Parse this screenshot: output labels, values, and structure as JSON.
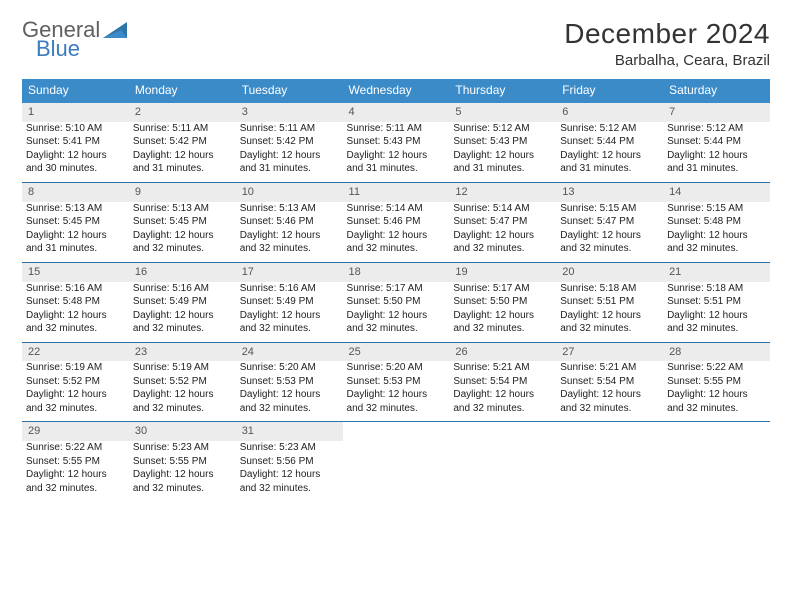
{
  "logo": {
    "line1": "General",
    "line2": "Blue"
  },
  "title": "December 2024",
  "location": "Barbalha, Ceara, Brazil",
  "colors": {
    "header_bg": "#3b8bc9",
    "header_text": "#ffffff",
    "row_rule": "#2f74a8",
    "daynum_bg": "#ececec",
    "logo_gray": "#5f5f5f",
    "logo_blue": "#3b7bbf"
  },
  "typography": {
    "title_fontsize": 28,
    "location_fontsize": 15,
    "dayheader_fontsize": 12,
    "cell_fontsize": 10
  },
  "day_headers": [
    "Sunday",
    "Monday",
    "Tuesday",
    "Wednesday",
    "Thursday",
    "Friday",
    "Saturday"
  ],
  "weeks": [
    {
      "nums": [
        "1",
        "2",
        "3",
        "4",
        "5",
        "6",
        "7"
      ],
      "cells": [
        {
          "sunrise": "Sunrise: 5:10 AM",
          "sunset": "Sunset: 5:41 PM",
          "d1": "Daylight: 12 hours",
          "d2": "and 30 minutes."
        },
        {
          "sunrise": "Sunrise: 5:11 AM",
          "sunset": "Sunset: 5:42 PM",
          "d1": "Daylight: 12 hours",
          "d2": "and 31 minutes."
        },
        {
          "sunrise": "Sunrise: 5:11 AM",
          "sunset": "Sunset: 5:42 PM",
          "d1": "Daylight: 12 hours",
          "d2": "and 31 minutes."
        },
        {
          "sunrise": "Sunrise: 5:11 AM",
          "sunset": "Sunset: 5:43 PM",
          "d1": "Daylight: 12 hours",
          "d2": "and 31 minutes."
        },
        {
          "sunrise": "Sunrise: 5:12 AM",
          "sunset": "Sunset: 5:43 PM",
          "d1": "Daylight: 12 hours",
          "d2": "and 31 minutes."
        },
        {
          "sunrise": "Sunrise: 5:12 AM",
          "sunset": "Sunset: 5:44 PM",
          "d1": "Daylight: 12 hours",
          "d2": "and 31 minutes."
        },
        {
          "sunrise": "Sunrise: 5:12 AM",
          "sunset": "Sunset: 5:44 PM",
          "d1": "Daylight: 12 hours",
          "d2": "and 31 minutes."
        }
      ]
    },
    {
      "nums": [
        "8",
        "9",
        "10",
        "11",
        "12",
        "13",
        "14"
      ],
      "cells": [
        {
          "sunrise": "Sunrise: 5:13 AM",
          "sunset": "Sunset: 5:45 PM",
          "d1": "Daylight: 12 hours",
          "d2": "and 31 minutes."
        },
        {
          "sunrise": "Sunrise: 5:13 AM",
          "sunset": "Sunset: 5:45 PM",
          "d1": "Daylight: 12 hours",
          "d2": "and 32 minutes."
        },
        {
          "sunrise": "Sunrise: 5:13 AM",
          "sunset": "Sunset: 5:46 PM",
          "d1": "Daylight: 12 hours",
          "d2": "and 32 minutes."
        },
        {
          "sunrise": "Sunrise: 5:14 AM",
          "sunset": "Sunset: 5:46 PM",
          "d1": "Daylight: 12 hours",
          "d2": "and 32 minutes."
        },
        {
          "sunrise": "Sunrise: 5:14 AM",
          "sunset": "Sunset: 5:47 PM",
          "d1": "Daylight: 12 hours",
          "d2": "and 32 minutes."
        },
        {
          "sunrise": "Sunrise: 5:15 AM",
          "sunset": "Sunset: 5:47 PM",
          "d1": "Daylight: 12 hours",
          "d2": "and 32 minutes."
        },
        {
          "sunrise": "Sunrise: 5:15 AM",
          "sunset": "Sunset: 5:48 PM",
          "d1": "Daylight: 12 hours",
          "d2": "and 32 minutes."
        }
      ]
    },
    {
      "nums": [
        "15",
        "16",
        "17",
        "18",
        "19",
        "20",
        "21"
      ],
      "cells": [
        {
          "sunrise": "Sunrise: 5:16 AM",
          "sunset": "Sunset: 5:48 PM",
          "d1": "Daylight: 12 hours",
          "d2": "and 32 minutes."
        },
        {
          "sunrise": "Sunrise: 5:16 AM",
          "sunset": "Sunset: 5:49 PM",
          "d1": "Daylight: 12 hours",
          "d2": "and 32 minutes."
        },
        {
          "sunrise": "Sunrise: 5:16 AM",
          "sunset": "Sunset: 5:49 PM",
          "d1": "Daylight: 12 hours",
          "d2": "and 32 minutes."
        },
        {
          "sunrise": "Sunrise: 5:17 AM",
          "sunset": "Sunset: 5:50 PM",
          "d1": "Daylight: 12 hours",
          "d2": "and 32 minutes."
        },
        {
          "sunrise": "Sunrise: 5:17 AM",
          "sunset": "Sunset: 5:50 PM",
          "d1": "Daylight: 12 hours",
          "d2": "and 32 minutes."
        },
        {
          "sunrise": "Sunrise: 5:18 AM",
          "sunset": "Sunset: 5:51 PM",
          "d1": "Daylight: 12 hours",
          "d2": "and 32 minutes."
        },
        {
          "sunrise": "Sunrise: 5:18 AM",
          "sunset": "Sunset: 5:51 PM",
          "d1": "Daylight: 12 hours",
          "d2": "and 32 minutes."
        }
      ]
    },
    {
      "nums": [
        "22",
        "23",
        "24",
        "25",
        "26",
        "27",
        "28"
      ],
      "cells": [
        {
          "sunrise": "Sunrise: 5:19 AM",
          "sunset": "Sunset: 5:52 PM",
          "d1": "Daylight: 12 hours",
          "d2": "and 32 minutes."
        },
        {
          "sunrise": "Sunrise: 5:19 AM",
          "sunset": "Sunset: 5:52 PM",
          "d1": "Daylight: 12 hours",
          "d2": "and 32 minutes."
        },
        {
          "sunrise": "Sunrise: 5:20 AM",
          "sunset": "Sunset: 5:53 PM",
          "d1": "Daylight: 12 hours",
          "d2": "and 32 minutes."
        },
        {
          "sunrise": "Sunrise: 5:20 AM",
          "sunset": "Sunset: 5:53 PM",
          "d1": "Daylight: 12 hours",
          "d2": "and 32 minutes."
        },
        {
          "sunrise": "Sunrise: 5:21 AM",
          "sunset": "Sunset: 5:54 PM",
          "d1": "Daylight: 12 hours",
          "d2": "and 32 minutes."
        },
        {
          "sunrise": "Sunrise: 5:21 AM",
          "sunset": "Sunset: 5:54 PM",
          "d1": "Daylight: 12 hours",
          "d2": "and 32 minutes."
        },
        {
          "sunrise": "Sunrise: 5:22 AM",
          "sunset": "Sunset: 5:55 PM",
          "d1": "Daylight: 12 hours",
          "d2": "and 32 minutes."
        }
      ]
    },
    {
      "nums": [
        "29",
        "30",
        "31",
        "",
        "",
        "",
        ""
      ],
      "cells": [
        {
          "sunrise": "Sunrise: 5:22 AM",
          "sunset": "Sunset: 5:55 PM",
          "d1": "Daylight: 12 hours",
          "d2": "and 32 minutes."
        },
        {
          "sunrise": "Sunrise: 5:23 AM",
          "sunset": "Sunset: 5:55 PM",
          "d1": "Daylight: 12 hours",
          "d2": "and 32 minutes."
        },
        {
          "sunrise": "Sunrise: 5:23 AM",
          "sunset": "Sunset: 5:56 PM",
          "d1": "Daylight: 12 hours",
          "d2": "and 32 minutes."
        },
        null,
        null,
        null,
        null
      ]
    }
  ]
}
